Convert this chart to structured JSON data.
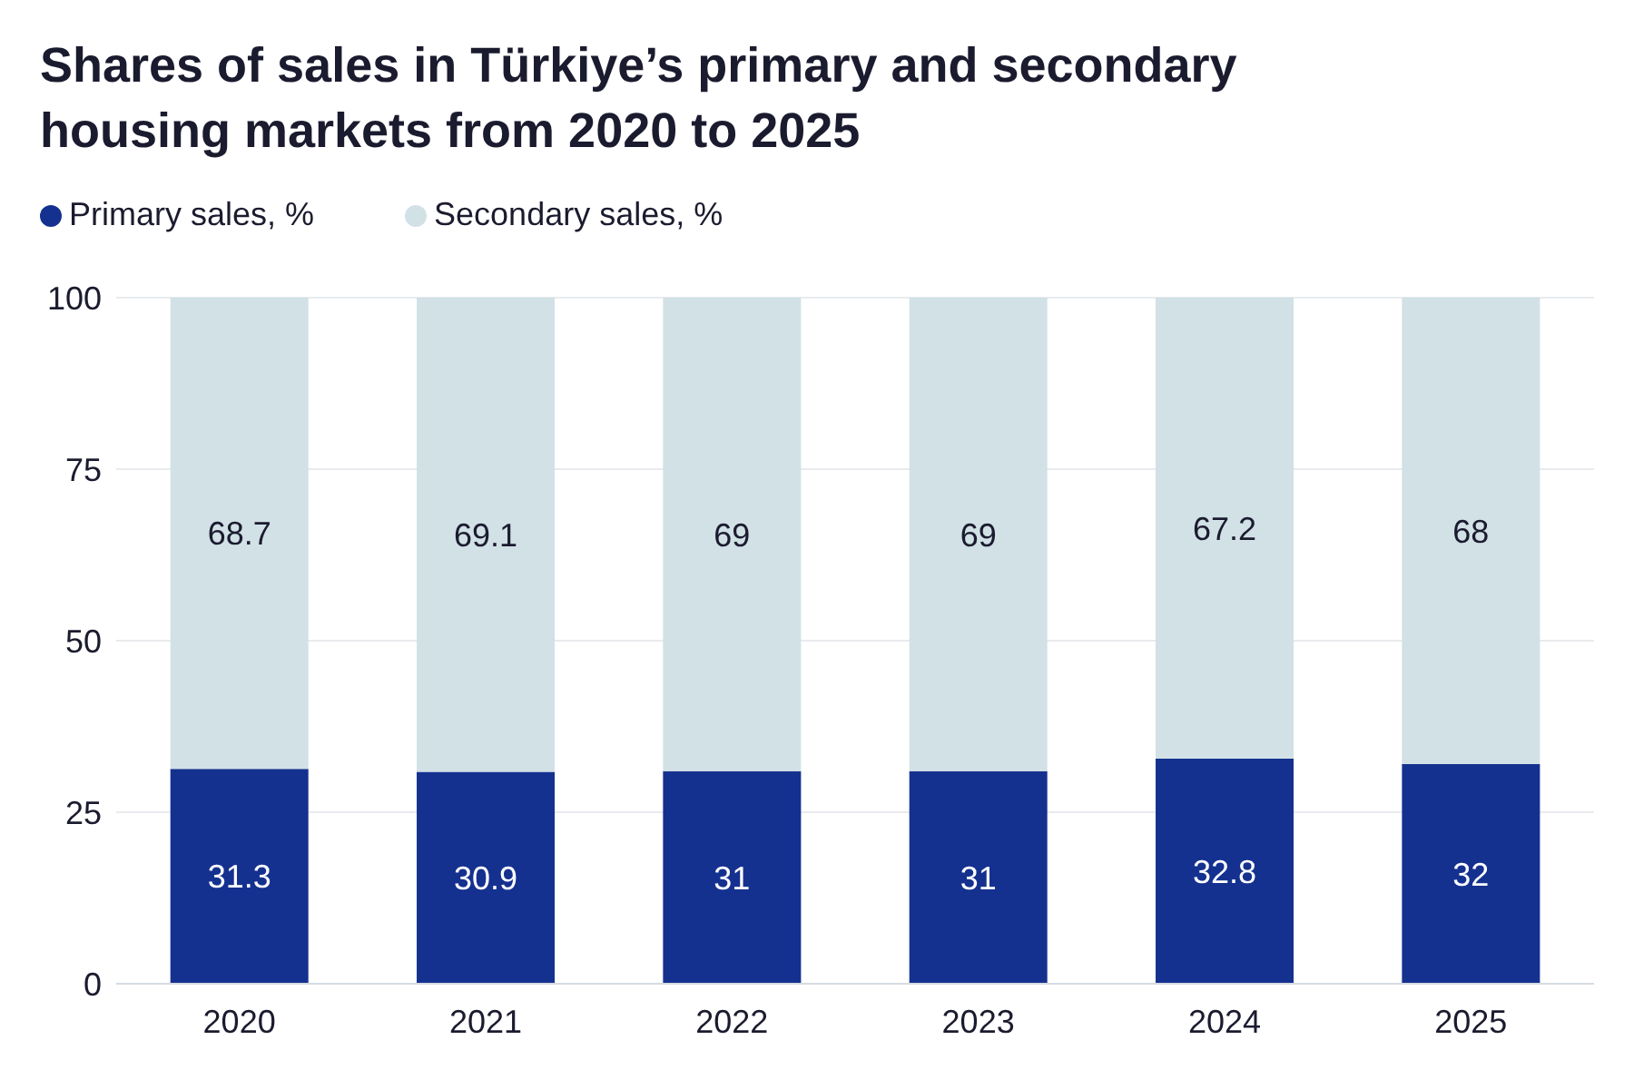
{
  "chart_data": {
    "type": "bar",
    "title": "Shares of sales in Türkiye’s primary and secondary housing markets from 2020 to 2025",
    "categories": [
      "2020",
      "2021",
      "2022",
      "2023",
      "2024",
      "2025"
    ],
    "series": [
      {
        "name": "Primary sales, %",
        "color": "#15318f",
        "values": [
          31.3,
          30.9,
          31,
          31,
          32.8,
          32
        ]
      },
      {
        "name": "Secondary sales, %",
        "color": "#d1e1e6",
        "values": [
          68.7,
          69.1,
          69,
          69,
          67.2,
          68
        ]
      }
    ],
    "stacked": true,
    "ylim": [
      0,
      100
    ],
    "yticks": [
      0,
      25,
      50,
      75,
      100
    ],
    "grid": "y",
    "legend": "top left",
    "data_labels": true
  }
}
